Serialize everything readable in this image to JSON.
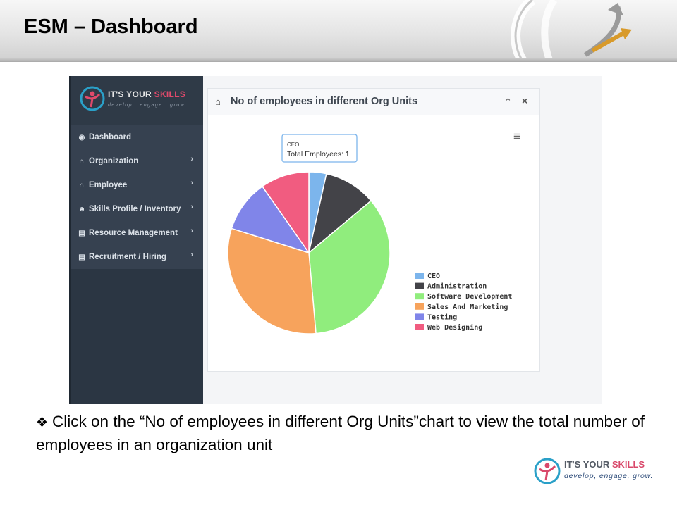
{
  "slide": {
    "title": "ESM – Dashboard",
    "caption": "Click on the “No of employees in different Org Units”chart to view the total number of employees in an organization unit",
    "caption_bullet": "❖"
  },
  "app": {
    "logo": {
      "brand_main": "IT'S YOUR ",
      "brand_accent": "SKILLS",
      "tagline": "develop . engage . grow"
    },
    "sidebar": {
      "items": [
        {
          "label": "Dashboard",
          "icon": "dashboard-icon",
          "glyph": "◉",
          "has_children": false
        },
        {
          "label": "Organization",
          "icon": "bank-icon",
          "glyph": "⌂",
          "has_children": true
        },
        {
          "label": "Employee",
          "icon": "bank-icon",
          "glyph": "⌂",
          "has_children": true
        },
        {
          "label": "Skills Profile / Inventory",
          "icon": "users-icon",
          "glyph": "☻",
          "has_children": true
        },
        {
          "label": "Resource Management",
          "icon": "document-icon",
          "glyph": "▤",
          "has_children": true
        },
        {
          "label": "Recruitment / Hiring",
          "icon": "file-icon",
          "glyph": "▤",
          "has_children": true
        }
      ],
      "chevron": "›"
    },
    "panel": {
      "title": "No of employees in different Org Units",
      "title_icon": "bank-icon",
      "collapse_glyph": "⌃",
      "close_glyph": "×",
      "menu_glyph": "≡"
    }
  },
  "chart_data": {
    "type": "pie",
    "title": "",
    "series": [
      {
        "name": "CEO",
        "value": 1,
        "color": "#7cb5ec"
      },
      {
        "name": "Administration",
        "value": 3,
        "color": "#434348"
      },
      {
        "name": "Software Development",
        "value": 10,
        "color": "#90ed7d"
      },
      {
        "name": "Sales And Marketing",
        "value": 9,
        "color": "#f7a35c"
      },
      {
        "name": "Testing",
        "value": 3,
        "color": "#8085e9"
      },
      {
        "name": "Web Designing",
        "value": 2.8,
        "color": "#f15c80"
      }
    ],
    "legend_placement": "right",
    "tooltip": {
      "series": "CEO",
      "label": "Total Employees: ",
      "value": "1"
    }
  },
  "footer": {
    "brand_main": "IT'S YOUR ",
    "brand_accent": "SKILLS",
    "tagline": "develop, engage, grow."
  }
}
